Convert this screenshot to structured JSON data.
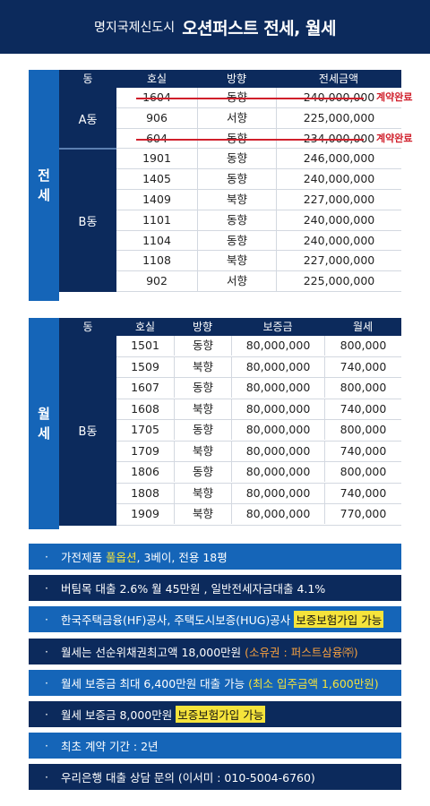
{
  "header": {
    "subtitle": "명지국제신도시",
    "title": "오션퍼스트  전세, 월세"
  },
  "jeonse": {
    "side_label": [
      "전",
      "세"
    ],
    "columns": [
      "동",
      "호실",
      "방향",
      "전세금액"
    ],
    "groups": [
      {
        "dong": "A동",
        "rows": [
          {
            "unit": "1604",
            "dir": "동향",
            "price": "240,000,000",
            "done": "계약완료"
          },
          {
            "unit": "906",
            "dir": "서향",
            "price": "225,000,000",
            "done": ""
          },
          {
            "unit": "604",
            "dir": "동향",
            "price": "234,000,000",
            "done": "계약완료"
          }
        ]
      },
      {
        "dong": "B동",
        "rows": [
          {
            "unit": "1901",
            "dir": "동향",
            "price": "246,000,000",
            "done": ""
          },
          {
            "unit": "1405",
            "dir": "동향",
            "price": "240,000,000",
            "done": ""
          },
          {
            "unit": "1409",
            "dir": "북향",
            "price": "227,000,000",
            "done": ""
          },
          {
            "unit": "1101",
            "dir": "동향",
            "price": "240,000,000",
            "done": ""
          },
          {
            "unit": "1104",
            "dir": "동향",
            "price": "240,000,000",
            "done": ""
          },
          {
            "unit": "1108",
            "dir": "북향",
            "price": "227,000,000",
            "done": ""
          },
          {
            "unit": "902",
            "dir": "서향",
            "price": "225,000,000",
            "done": ""
          }
        ]
      }
    ]
  },
  "wolse": {
    "side_label": [
      "월",
      "세"
    ],
    "columns": [
      "동",
      "호실",
      "방향",
      "보증금",
      "월세"
    ],
    "dong": "B동",
    "rows": [
      {
        "unit": "1501",
        "dir": "동향",
        "deposit": "80,000,000",
        "rent": "800,000"
      },
      {
        "unit": "1509",
        "dir": "북향",
        "deposit": "80,000,000",
        "rent": "740,000"
      },
      {
        "unit": "1607",
        "dir": "동향",
        "deposit": "80,000,000",
        "rent": "800,000"
      },
      {
        "unit": "1608",
        "dir": "북향",
        "deposit": "80,000,000",
        "rent": "740,000"
      },
      {
        "unit": "1705",
        "dir": "동향",
        "deposit": "80,000,000",
        "rent": "800,000"
      },
      {
        "unit": "1709",
        "dir": "북향",
        "deposit": "80,000,000",
        "rent": "740,000"
      },
      {
        "unit": "1806",
        "dir": "동향",
        "deposit": "80,000,000",
        "rent": "800,000"
      },
      {
        "unit": "1808",
        "dir": "북향",
        "deposit": "80,000,000",
        "rent": "740,000"
      },
      {
        "unit": "1909",
        "dir": "북향",
        "deposit": "80,000,000",
        "rent": "770,000"
      }
    ]
  },
  "notes": [
    {
      "bullet": "·",
      "parts": [
        {
          "t": "가전제품 "
        },
        {
          "t": "풀옵션",
          "s": "yellow-text"
        },
        {
          "t": ", 3베이, 전용 18평"
        }
      ]
    },
    {
      "bullet": "·",
      "parts": [
        {
          "t": "버팀목 대출 2.6% 월 45만원 , 일반전세자금대출 4.1%"
        }
      ]
    },
    {
      "bullet": "·",
      "parts": [
        {
          "t": "한국주택금융(HF)공사, 주택도시보증(HUG)공사 "
        },
        {
          "t": "보증보험가입 가능",
          "s": "yellow-bg"
        }
      ]
    },
    {
      "bullet": "·",
      "parts": [
        {
          "t": "월세는 선순위채권최고액 18,000만원 "
        },
        {
          "t": "(소유권 : 퍼스트삼융㈜)",
          "s": "orange"
        }
      ]
    },
    {
      "bullet": "·",
      "parts": [
        {
          "t": "월세 보증금 최대 6,400만원 대출 가능 "
        },
        {
          "t": "(최소 입주금액 1,600만원)",
          "s": "yellow-text"
        }
      ]
    },
    {
      "bullet": "·",
      "parts": [
        {
          "t": "월세 보증금 8,000만원 "
        },
        {
          "t": "보증보험가입 가능",
          "s": "yellow-bg"
        }
      ]
    },
    {
      "bullet": "·",
      "parts": [
        {
          "t": "최초 계약 기간 : 2년"
        }
      ]
    },
    {
      "bullet": "·",
      "parts": [
        {
          "t": "우리은행 대출 상담 문의 (이서미 : 010-5004-6760)"
        }
      ]
    }
  ],
  "colors": {
    "navy": "#0c2a5c",
    "blue": "#1565b8",
    "strike_red": "#d01f2b",
    "highlight_yellow": "#f5e33b"
  }
}
